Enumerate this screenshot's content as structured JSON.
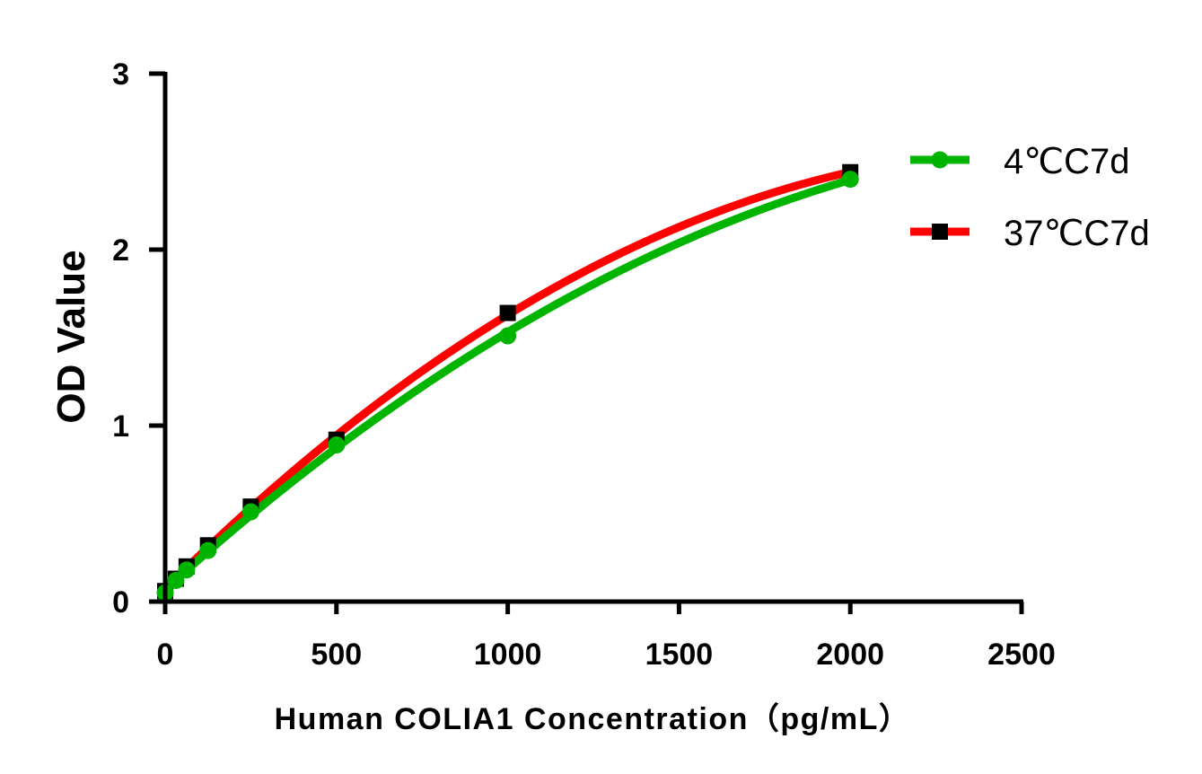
{
  "chart_data": {
    "type": "line",
    "xlabel": "Human COLIA1 Concentration（pg/mL）",
    "ylabel": "OD Value",
    "xlim": [
      0,
      2500
    ],
    "ylim": [
      0,
      3
    ],
    "xticks": [
      0,
      500,
      1000,
      1500,
      2000,
      2500
    ],
    "yticks": [
      0,
      1,
      2,
      3
    ],
    "grid": false,
    "legend_position": "right",
    "series": [
      {
        "name": "4℃C7d",
        "color": "#00b400",
        "marker": "circle",
        "points": [
          {
            "x": 0,
            "y": 0.05
          },
          {
            "x": 31.25,
            "y": 0.12
          },
          {
            "x": 62.5,
            "y": 0.18
          },
          {
            "x": 125,
            "y": 0.29
          },
          {
            "x": 250,
            "y": 0.51
          },
          {
            "x": 500,
            "y": 0.89
          },
          {
            "x": 1000,
            "y": 1.51
          },
          {
            "x": 2000,
            "y": 2.4
          }
        ]
      },
      {
        "name": "37℃C7d",
        "color": "#ff0000",
        "marker": "square",
        "points": [
          {
            "x": 0,
            "y": 0.06
          },
          {
            "x": 31.25,
            "y": 0.13
          },
          {
            "x": 62.5,
            "y": 0.2
          },
          {
            "x": 125,
            "y": 0.32
          },
          {
            "x": 250,
            "y": 0.54
          },
          {
            "x": 500,
            "y": 0.92
          },
          {
            "x": 1000,
            "y": 1.64
          },
          {
            "x": 2000,
            "y": 2.44
          }
        ]
      }
    ]
  }
}
